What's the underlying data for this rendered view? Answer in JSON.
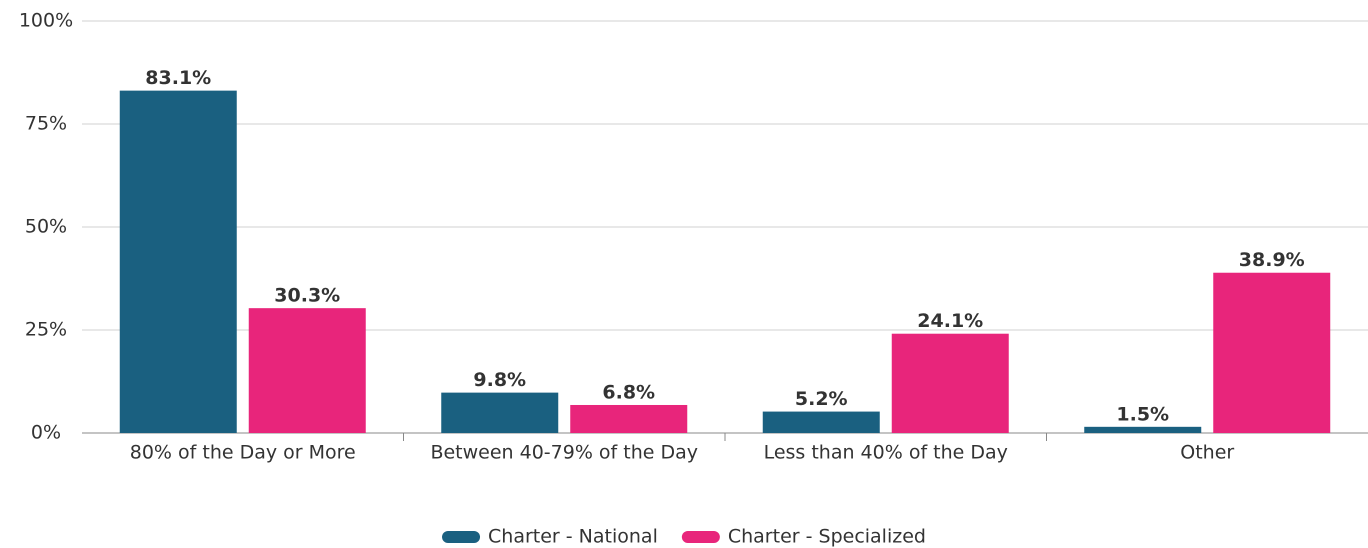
{
  "chart_data": {
    "type": "bar",
    "categories": [
      "80% of the Day or More",
      "Between 40-79% of the Day",
      "Less than 40% of the Day",
      "Other"
    ],
    "series": [
      {
        "name": "Charter - National",
        "color": "#1a6080",
        "values": [
          83.1,
          9.8,
          5.2,
          1.5
        ],
        "value_labels": [
          "83.1%",
          "9.8%",
          "5.2%",
          "1.5%"
        ]
      },
      {
        "name": "Charter - Specialized",
        "color": "#e8257b",
        "values": [
          30.3,
          6.8,
          24.1,
          38.9
        ],
        "value_labels": [
          "30.3%",
          "6.8%",
          "24.1%",
          "38.9%"
        ]
      }
    ],
    "ylim": [
      0,
      100
    ],
    "yticks": [
      {
        "value": 0,
        "label": "0%"
      },
      {
        "value": 25,
        "label": "25%"
      },
      {
        "value": 50,
        "label": "50%"
      },
      {
        "value": 75,
        "label": "75%"
      },
      {
        "value": 100,
        "label": "100%"
      }
    ],
    "grid": true,
    "legend": "bottom"
  }
}
